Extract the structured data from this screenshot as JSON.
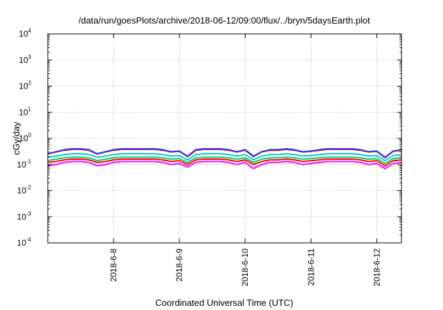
{
  "chart_data": {
    "type": "line",
    "title": "/data/run/goesPlots/archive/2018-06-12/09:00/flux/../bryn/5daysEarth.plot",
    "xlabel": "Coordinated Universal Time (UTC)",
    "ylabel": "cGy/day",
    "y_scale": "log",
    "ylim": [
      0.0001,
      10000
    ],
    "xlim": [
      "2018-06-07T00:00",
      "2018-06-12T09:00"
    ],
    "grid": true,
    "y_ticks": [
      {
        "base": "10",
        "exp": "-4"
      },
      {
        "base": "10",
        "exp": "-3"
      },
      {
        "base": "10",
        "exp": "-2"
      },
      {
        "base": "10",
        "exp": "-1"
      },
      {
        "base": "10",
        "exp": "0"
      },
      {
        "base": "10",
        "exp": "1"
      },
      {
        "base": "10",
        "exp": "2"
      },
      {
        "base": "10",
        "exp": "3"
      },
      {
        "base": "10",
        "exp": "4"
      }
    ],
    "x_ticks": [
      "2018-6-8",
      "2018-6-9",
      "2018-6-10",
      "2018-6-11",
      "2018-6-12"
    ],
    "x_tick_dates": [
      "2018-06-08T00:00",
      "2018-06-09T00:00",
      "2018-06-10T00:00",
      "2018-06-11T00:00",
      "2018-06-12T00:00"
    ],
    "times": [
      "2018-06-07T00:00",
      "2018-06-07T03:00",
      "2018-06-07T06:00",
      "2018-06-07T09:00",
      "2018-06-07T12:00",
      "2018-06-07T15:00",
      "2018-06-07T18:00",
      "2018-06-07T21:00",
      "2018-06-08T00:00",
      "2018-06-08T03:00",
      "2018-06-08T06:00",
      "2018-06-08T09:00",
      "2018-06-08T12:00",
      "2018-06-08T15:00",
      "2018-06-08T18:00",
      "2018-06-08T21:00",
      "2018-06-09T00:00",
      "2018-06-09T03:00",
      "2018-06-09T06:00",
      "2018-06-09T09:00",
      "2018-06-09T12:00",
      "2018-06-09T15:00",
      "2018-06-09T18:00",
      "2018-06-09T21:00",
      "2018-06-10T00:00",
      "2018-06-10T03:00",
      "2018-06-10T06:00",
      "2018-06-10T09:00",
      "2018-06-10T12:00",
      "2018-06-10T15:00",
      "2018-06-10T18:00",
      "2018-06-10T21:00",
      "2018-06-11T00:00",
      "2018-06-11T03:00",
      "2018-06-11T06:00",
      "2018-06-11T09:00",
      "2018-06-11T12:00",
      "2018-06-11T15:00",
      "2018-06-11T18:00",
      "2018-06-11T21:00",
      "2018-06-12T00:00",
      "2018-06-12T03:00",
      "2018-06-12T06:00",
      "2018-06-12T09:00"
    ],
    "series": [
      {
        "color": "#ff00ff",
        "values": [
          0.09,
          0.1,
          0.12,
          0.13,
          0.13,
          0.12,
          0.09,
          0.1,
          0.12,
          0.13,
          0.13,
          0.13,
          0.13,
          0.13,
          0.12,
          0.1,
          0.11,
          0.08,
          0.12,
          0.13,
          0.13,
          0.13,
          0.12,
          0.1,
          0.12,
          0.07,
          0.1,
          0.12,
          0.12,
          0.13,
          0.12,
          0.1,
          0.11,
          0.12,
          0.13,
          0.13,
          0.13,
          0.13,
          0.12,
          0.1,
          0.11,
          0.07,
          0.11,
          0.12
        ]
      },
      {
        "color": "#ff0000",
        "values": [
          0.12,
          0.13,
          0.15,
          0.16,
          0.16,
          0.15,
          0.12,
          0.13,
          0.15,
          0.16,
          0.16,
          0.16,
          0.16,
          0.16,
          0.15,
          0.13,
          0.14,
          0.1,
          0.15,
          0.16,
          0.16,
          0.16,
          0.15,
          0.13,
          0.15,
          0.1,
          0.13,
          0.15,
          0.15,
          0.16,
          0.15,
          0.13,
          0.14,
          0.15,
          0.16,
          0.16,
          0.16,
          0.16,
          0.15,
          0.13,
          0.14,
          0.09,
          0.14,
          0.15
        ]
      },
      {
        "color": "#00cc66",
        "values": [
          0.14,
          0.16,
          0.18,
          0.19,
          0.19,
          0.18,
          0.14,
          0.16,
          0.18,
          0.19,
          0.19,
          0.19,
          0.19,
          0.19,
          0.18,
          0.16,
          0.17,
          0.12,
          0.18,
          0.19,
          0.19,
          0.19,
          0.18,
          0.16,
          0.18,
          0.12,
          0.16,
          0.18,
          0.18,
          0.19,
          0.18,
          0.16,
          0.17,
          0.18,
          0.19,
          0.19,
          0.19,
          0.19,
          0.18,
          0.16,
          0.17,
          0.11,
          0.17,
          0.18
        ]
      },
      {
        "color": "#00cccc",
        "values": [
          0.19,
          0.21,
          0.24,
          0.26,
          0.26,
          0.24,
          0.19,
          0.21,
          0.24,
          0.26,
          0.26,
          0.26,
          0.26,
          0.26,
          0.24,
          0.21,
          0.22,
          0.15,
          0.24,
          0.26,
          0.26,
          0.26,
          0.24,
          0.21,
          0.24,
          0.15,
          0.21,
          0.24,
          0.24,
          0.26,
          0.24,
          0.21,
          0.22,
          0.24,
          0.26,
          0.26,
          0.26,
          0.26,
          0.24,
          0.21,
          0.22,
          0.14,
          0.22,
          0.24
        ]
      },
      {
        "color": "#ff0000",
        "values": [
          0.25,
          0.3,
          0.35,
          0.38,
          0.38,
          0.35,
          0.25,
          0.3,
          0.35,
          0.38,
          0.38,
          0.38,
          0.38,
          0.38,
          0.35,
          0.3,
          0.32,
          0.2,
          0.35,
          0.38,
          0.38,
          0.38,
          0.35,
          0.3,
          0.35,
          0.2,
          0.3,
          0.35,
          0.35,
          0.38,
          0.35,
          0.3,
          0.32,
          0.35,
          0.38,
          0.38,
          0.38,
          0.38,
          0.35,
          0.3,
          0.32,
          0.18,
          0.32,
          0.35
        ]
      },
      {
        "color": "#2244ff",
        "values": [
          0.26,
          0.31,
          0.37,
          0.4,
          0.4,
          0.37,
          0.26,
          0.31,
          0.37,
          0.4,
          0.4,
          0.4,
          0.4,
          0.4,
          0.37,
          0.31,
          0.33,
          0.21,
          0.37,
          0.4,
          0.4,
          0.4,
          0.37,
          0.31,
          0.37,
          0.21,
          0.31,
          0.37,
          0.37,
          0.4,
          0.37,
          0.31,
          0.33,
          0.37,
          0.4,
          0.4,
          0.4,
          0.4,
          0.37,
          0.31,
          0.33,
          0.19,
          0.33,
          0.37
        ]
      }
    ]
  }
}
